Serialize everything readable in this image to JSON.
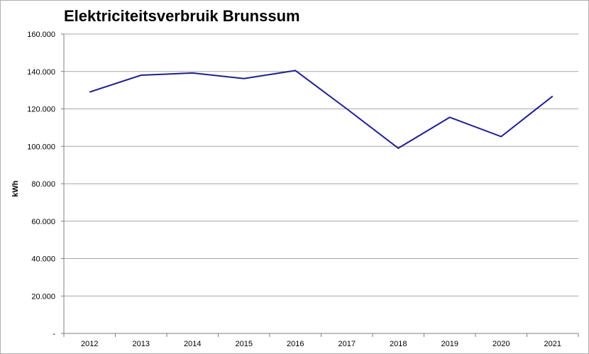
{
  "chart_data": {
    "type": "line",
    "title": "Elektriciteitsverbruik Brunssum",
    "xlabel": "",
    "ylabel": "kWh",
    "categories": [
      "2012",
      "2013",
      "2014",
      "2015",
      "2016",
      "2017",
      "2018",
      "2019",
      "2020",
      "2021"
    ],
    "series": [
      {
        "values": [
          129000,
          138000,
          139200,
          136200,
          140500,
          120000,
          99000,
          115500,
          105200,
          126800
        ]
      }
    ],
    "ylim": [
      0,
      160000
    ],
    "y_ticks": [
      0,
      20000,
      40000,
      60000,
      80000,
      100000,
      120000,
      140000,
      160000
    ],
    "y_tick_labels": [
      "-",
      "20.000",
      "40.000",
      "60.000",
      "80.000",
      "100.000",
      "120.000",
      "140.000",
      "160.000"
    ],
    "grid": true,
    "line_color": "#1f1f8f"
  }
}
